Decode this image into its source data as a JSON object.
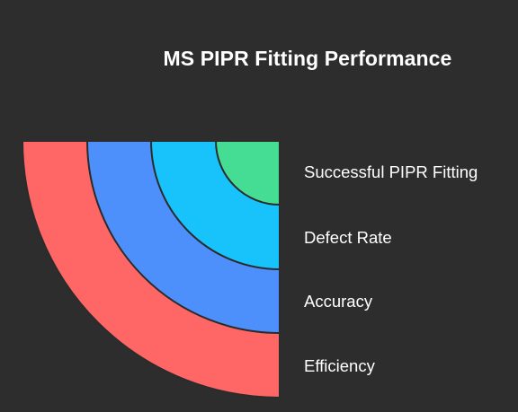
{
  "title": "MS PIPR Fitting Performance",
  "layers": [
    {
      "label": "Successful PIPR Fitting",
      "color": "#45dd93"
    },
    {
      "label": "Defect Rate",
      "color": "#17c3fa"
    },
    {
      "label": "Accuracy",
      "color": "#4d8ffb"
    },
    {
      "label": "Efficiency",
      "color": "#fe6765"
    }
  ],
  "outline_color": "#2b2b2b",
  "background_color": "#2d2d2d"
}
